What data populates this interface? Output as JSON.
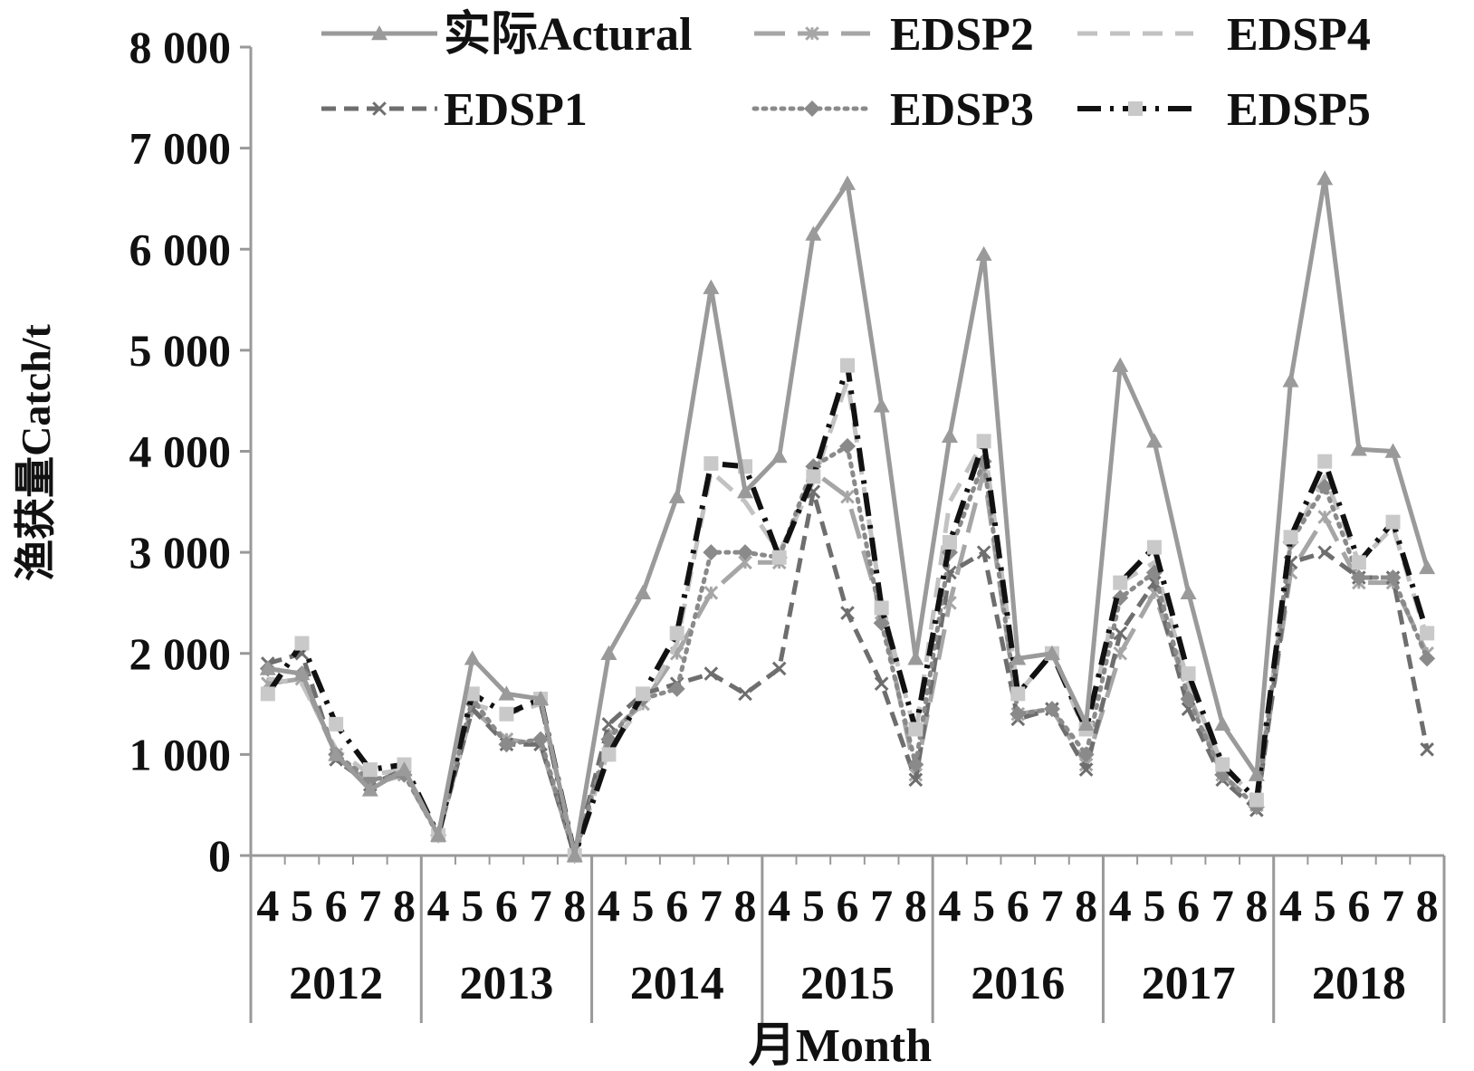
{
  "chart_data": {
    "type": "line",
    "title": "",
    "xlabel": "月Month",
    "ylabel": "渔获量Catch/t",
    "ylim": [
      0,
      8000
    ],
    "yticks": [
      0,
      1000,
      2000,
      3000,
      4000,
      5000,
      6000,
      7000,
      8000
    ],
    "ytick_labels": [
      "0",
      "1 000",
      "2 000",
      "3 000",
      "4 000",
      "5 000",
      "6 000",
      "7 000",
      "8 000"
    ],
    "years": [
      "2012",
      "2013",
      "2014",
      "2015",
      "2016",
      "2017",
      "2018"
    ],
    "months": [
      "4",
      "5",
      "6",
      "7",
      "8"
    ],
    "legend_placement": "top",
    "series": [
      {
        "name": "实际Actural",
        "color": "#9a9a9a",
        "dash": "solid",
        "marker": "triangle",
        "values": [
          1850,
          1800,
          1000,
          650,
          850,
          200,
          1950,
          1600,
          1550,
          0,
          2000,
          2600,
          3550,
          5620,
          3600,
          3950,
          6150,
          6650,
          4450,
          1950,
          4150,
          5950,
          1950,
          2000,
          1300,
          4850,
          4100,
          2600,
          1300,
          800,
          4700,
          6700,
          4020,
          4000,
          2850
        ]
      },
      {
        "name": "EDSP2",
        "color": "#a6a6a6",
        "dash": "longdash",
        "marker": "star",
        "values": [
          1700,
          1750,
          1000,
          700,
          800,
          200,
          1450,
          1150,
          1100,
          0,
          1200,
          1500,
          2000,
          2600,
          2900,
          2900,
          3800,
          3550,
          2400,
          800,
          2500,
          3800,
          1400,
          1450,
          900,
          2000,
          2600,
          1600,
          800,
          500,
          2800,
          3350,
          2700,
          2700,
          2000
        ]
      },
      {
        "name": "EDSP4",
        "color": "#c2c2c2",
        "dash": "mediumdash",
        "marker": "none",
        "values": [
          1750,
          1700,
          1050,
          800,
          850,
          200,
          1500,
          1400,
          1500,
          0,
          1050,
          1500,
          2100,
          3800,
          3500,
          3000,
          3700,
          4700,
          2500,
          1200,
          3500,
          4100,
          1600,
          2000,
          1200,
          2700,
          2900,
          1700,
          900,
          550,
          3100,
          3750,
          2900,
          3250,
          2150
        ]
      },
      {
        "name": "EDSP1",
        "color": "#6e6e6e",
        "dash": "dash",
        "marker": "x",
        "values": [
          1900,
          2000,
          950,
          700,
          850,
          200,
          1450,
          1100,
          1100,
          0,
          1300,
          1600,
          1700,
          1800,
          1600,
          1850,
          3600,
          2400,
          1700,
          750,
          2800,
          3000,
          1350,
          1450,
          850,
          2200,
          2700,
          1450,
          750,
          450,
          2900,
          3000,
          2750,
          2750,
          1050
        ]
      },
      {
        "name": "EDSP3",
        "color": "#8a8a8a",
        "dash": "dot",
        "marker": "diamond",
        "values": [
          1850,
          1800,
          1000,
          750,
          800,
          200,
          1550,
          1100,
          1150,
          0,
          1150,
          1550,
          1650,
          3000,
          3000,
          2950,
          3850,
          4050,
          2300,
          900,
          3000,
          3900,
          1400,
          1450,
          1000,
          2550,
          2800,
          1550,
          800,
          480,
          3100,
          3650,
          2750,
          2750,
          1950
        ]
      },
      {
        "name": "EDSP5",
        "color": "#111111",
        "dash": "dashdot",
        "marker": "square",
        "values": [
          1600,
          2100,
          1300,
          850,
          900,
          200,
          1600,
          1400,
          1550,
          0,
          1000,
          1600,
          2200,
          3880,
          3850,
          2950,
          3750,
          4850,
          2450,
          1250,
          3100,
          4100,
          1600,
          2000,
          1250,
          2700,
          3050,
          1800,
          900,
          550,
          3150,
          3900,
          2900,
          3300,
          2200
        ]
      }
    ]
  }
}
